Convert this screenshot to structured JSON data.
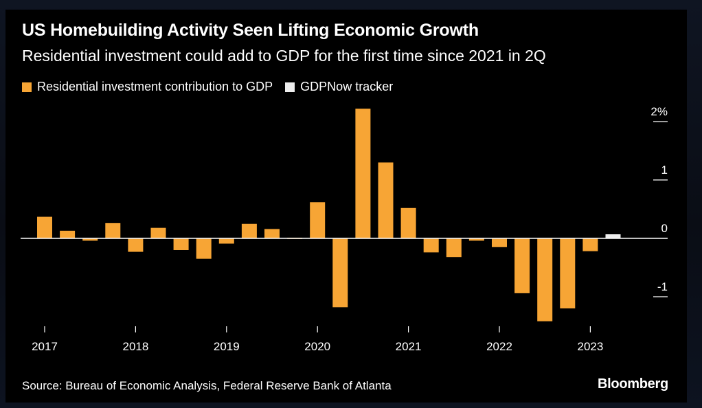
{
  "header": {
    "title": "US Homebuilding Activity Seen Lifting Economic Growth",
    "subtitle": "Residential investment could add to GDP for the first time since 2021 in 2Q"
  },
  "legend": [
    {
      "label": "Residential investment contribution to GDP",
      "color": "#f7a535"
    },
    {
      "label": "GDPNow tracker",
      "color": "#eeeeee"
    }
  ],
  "footer": {
    "source": "Source: Bureau of Economic Analysis, Federal Reserve Bank of Atlanta",
    "brand": "Bloomberg"
  },
  "chart_data": {
    "type": "bar",
    "title": "US Homebuilding Activity Seen Lifting Economic Growth",
    "subtitle": "Residential investment could add to GDP for the first time since 2021 in 2Q",
    "categories": [
      "2017Q1",
      "2017Q2",
      "2017Q3",
      "2017Q4",
      "2018Q1",
      "2018Q2",
      "2018Q3",
      "2018Q4",
      "2019Q1",
      "2019Q2",
      "2019Q3",
      "2019Q4",
      "2020Q1",
      "2020Q2",
      "2020Q3",
      "2020Q4",
      "2021Q1",
      "2021Q2",
      "2021Q3",
      "2021Q4",
      "2022Q1",
      "2022Q2",
      "2022Q3",
      "2022Q4",
      "2023Q1",
      "2023Q2"
    ],
    "series": [
      {
        "name": "Residential investment contribution to GDP",
        "color": "#f7a535",
        "values": [
          0.37,
          0.13,
          -0.04,
          0.26,
          -0.23,
          0.18,
          -0.2,
          -0.35,
          -0.09,
          0.25,
          0.16,
          0.0,
          0.62,
          -1.18,
          2.22,
          1.3,
          0.52,
          -0.24,
          -0.32,
          -0.04,
          -0.15,
          -0.94,
          -1.42,
          -1.2,
          -0.22,
          null
        ]
      },
      {
        "name": "GDPNow tracker",
        "color": "#eeeeee",
        "values": [
          null,
          null,
          null,
          null,
          null,
          null,
          null,
          null,
          null,
          null,
          null,
          null,
          null,
          null,
          null,
          null,
          null,
          null,
          null,
          null,
          null,
          null,
          null,
          null,
          null,
          0.07
        ]
      }
    ],
    "x_tick_labels": [
      "2017",
      "2018",
      "2019",
      "2020",
      "2021",
      "2022",
      "2023"
    ],
    "y_tick_labels": [
      "2%",
      "1",
      "0",
      "-1"
    ],
    "y_ticks": [
      2,
      1,
      0,
      -1
    ],
    "ylim": [
      -1.5,
      2.3
    ],
    "grid": false,
    "legend_position": "top-left",
    "xlabel": "",
    "ylabel": ""
  }
}
